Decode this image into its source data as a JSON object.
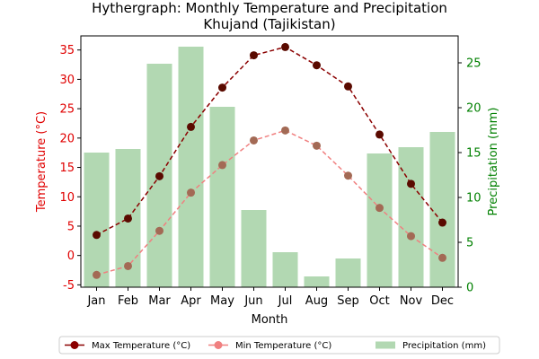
{
  "chart_data": {
    "type": "bar",
    "title": "Hythergraph: Monthly Temperature and Precipitation\nKhujand (Tajikistan)",
    "xlabel": "Month",
    "ylabel_left": "Temperature (°C)",
    "ylabel_right": "Precipitation (mm)",
    "categories": [
      "Jan",
      "Feb",
      "Mar",
      "Apr",
      "May",
      "Jun",
      "Jul",
      "Aug",
      "Sep",
      "Oct",
      "Nov",
      "Dec"
    ],
    "ylim_left": [
      -5.4,
      37.4
    ],
    "yticks_left": [
      -5,
      0,
      5,
      10,
      15,
      20,
      25,
      30,
      35
    ],
    "ylim_right": [
      0,
      28
    ],
    "yticks_right": [
      0,
      5,
      10,
      15,
      20,
      25
    ],
    "series": [
      {
        "name": "Max Temperature (°C)",
        "kind": "line",
        "axis": "left",
        "color": "#8b0000",
        "marker_color": "#5a0a00",
        "linestyle": "dashed",
        "values": [
          3.5,
          6.3,
          13.5,
          21.9,
          28.6,
          34.1,
          35.5,
          32.4,
          28.8,
          20.6,
          12.2,
          5.6
        ]
      },
      {
        "name": "Min Temperature (°C)",
        "kind": "line",
        "axis": "left",
        "color": "#f08080",
        "marker_color": "#a36a55",
        "linestyle": "dashed",
        "values": [
          -3.3,
          -1.8,
          4.2,
          10.7,
          15.4,
          19.6,
          21.3,
          18.7,
          13.6,
          8.1,
          3.3,
          -0.4
        ]
      },
      {
        "name": "Precipitation (mm)",
        "kind": "bar",
        "axis": "right",
        "color": "#b2d8b2",
        "values": [
          15.0,
          15.4,
          24.9,
          26.8,
          20.1,
          8.6,
          3.9,
          1.2,
          3.2,
          14.9,
          15.6,
          17.3
        ]
      }
    ],
    "legend_position": "bottom-center",
    "grid": false
  }
}
